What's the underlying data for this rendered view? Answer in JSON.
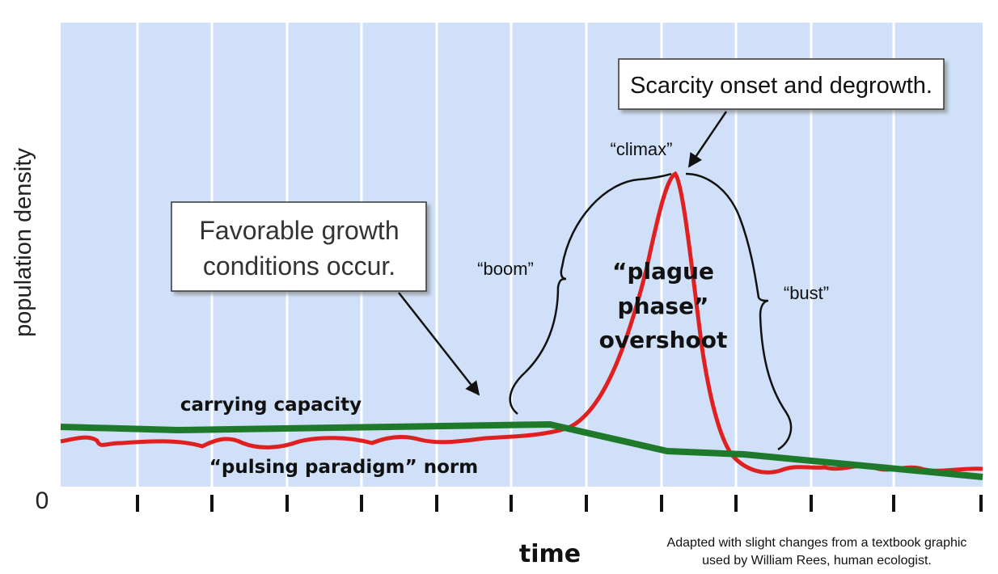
{
  "y_axis_label": "population density",
  "origin_label": "0",
  "x_axis_label": "time",
  "callouts": {
    "scarcity": "Scarcity onset and degrowth.",
    "favorable": [
      "Favorable growth",
      "conditions occur."
    ]
  },
  "labels": {
    "climax": "“climax”",
    "boom": "“boom”",
    "bust": "“bust”",
    "plague": [
      "“plague",
      "phase”",
      "overshoot"
    ],
    "carrying_capacity": "carrying capacity",
    "pulsing": "“pulsing paradigm” norm"
  },
  "credit": [
    "Adapted with slight changes from a textbook graphic",
    "used by William Rees, human ecologist."
  ]
}
